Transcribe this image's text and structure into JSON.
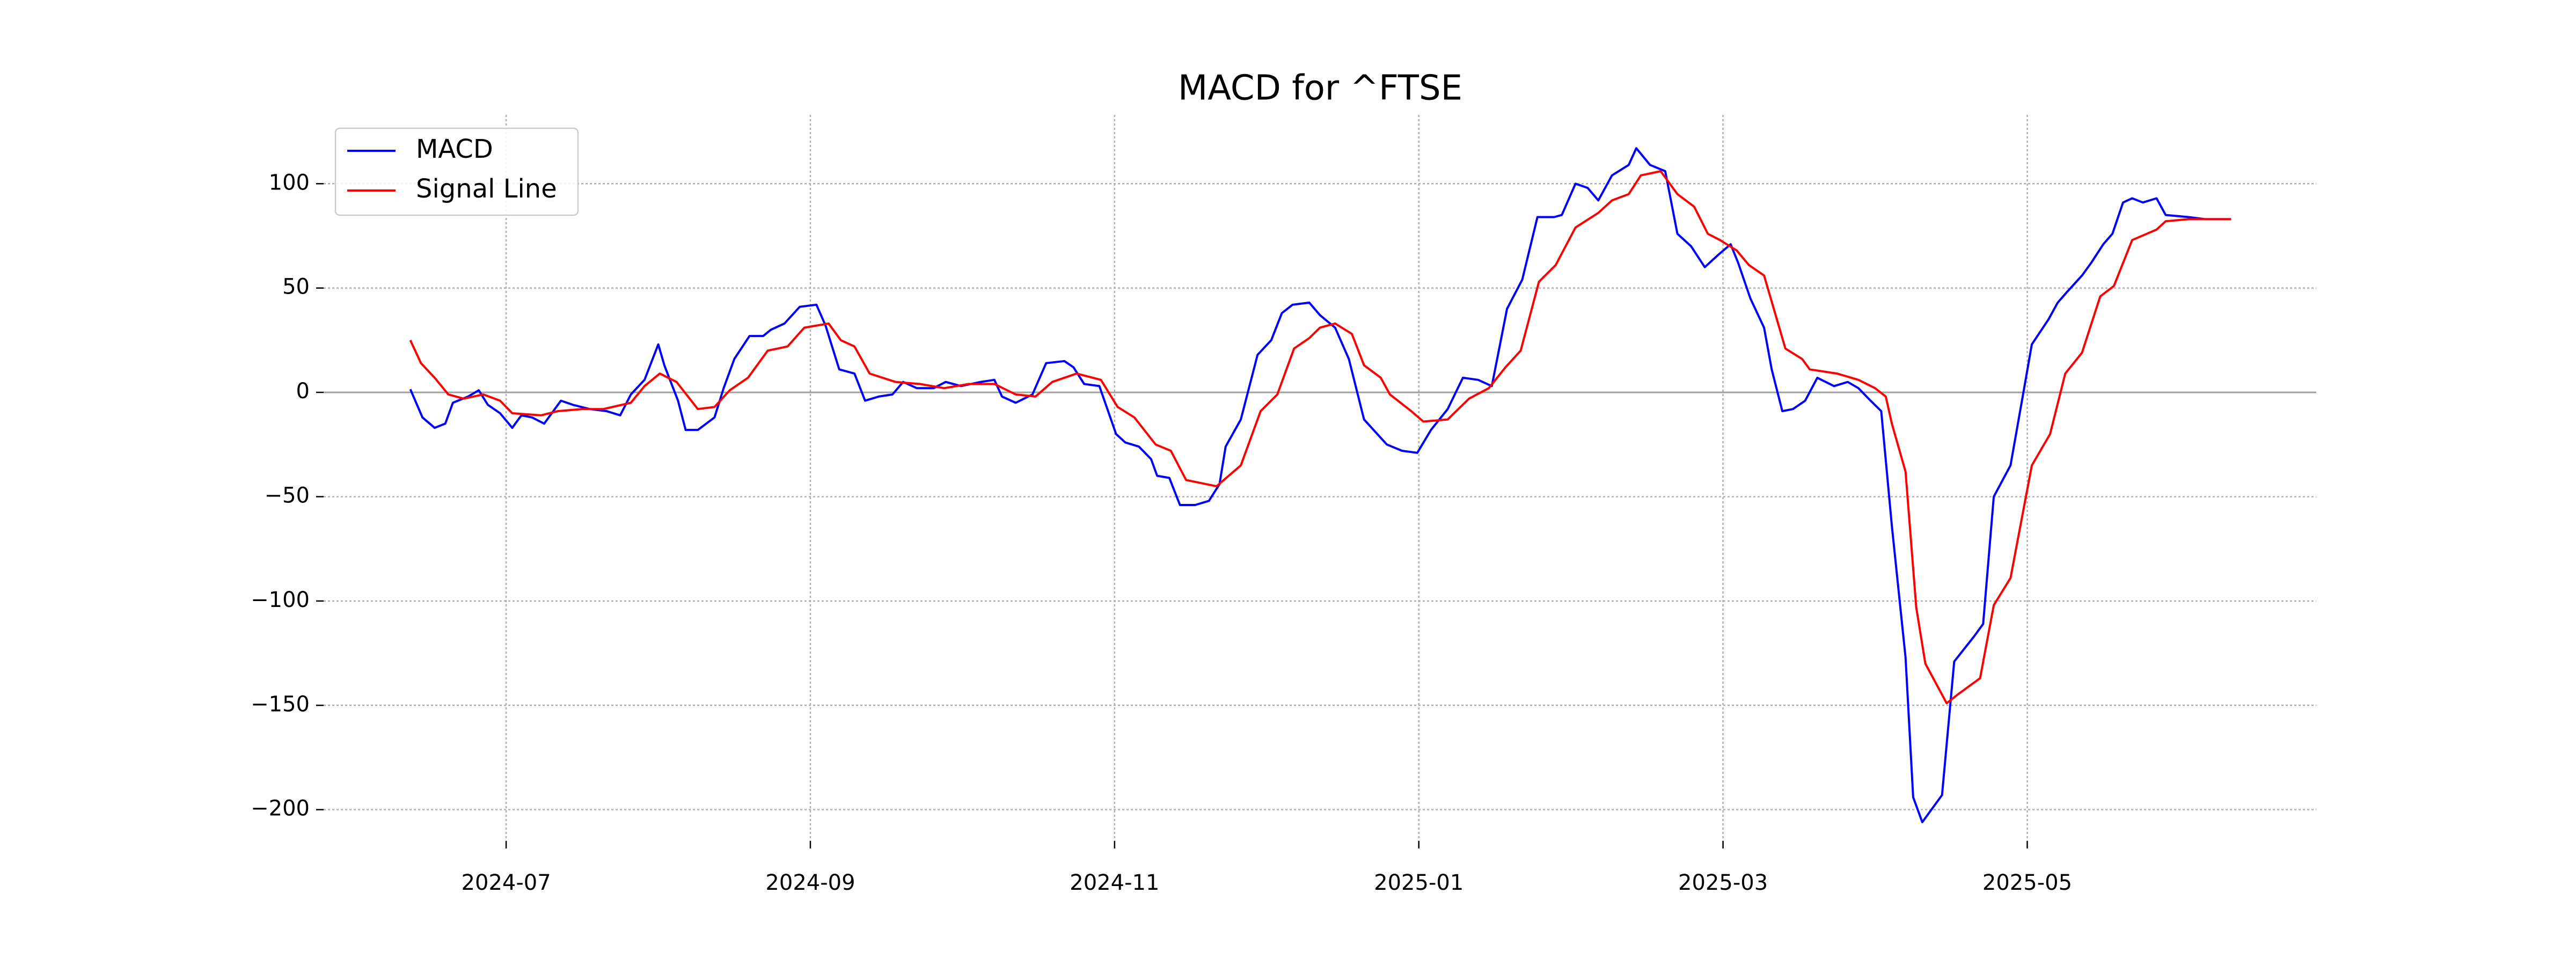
{
  "chart_data": {
    "type": "line",
    "title": "MACD for ^FTSE",
    "xlim": [
      5.8,
      18.9
    ],
    "xticks": [
      {
        "value": 7,
        "label": "2024-07"
      },
      {
        "value": 9,
        "label": "2024-09"
      },
      {
        "value": 11,
        "label": "2024-11"
      },
      {
        "value": 13,
        "label": "2025-01"
      },
      {
        "value": 15,
        "label": "2025-03"
      },
      {
        "value": 17,
        "label": "2025-05"
      }
    ],
    "ylim": [
      -215,
      133
    ],
    "yticks": [
      {
        "value": -200,
        "label": "−200"
      },
      {
        "value": -150,
        "label": "−150"
      },
      {
        "value": -100,
        "label": "−100"
      },
      {
        "value": -50,
        "label": "−50"
      },
      0,
      50,
      100
    ],
    "grid": true,
    "reference_line": 0,
    "legend": "upper left",
    "series": [
      {
        "name": "MACD",
        "color": "#0000ff",
        "x": [
          6.37,
          6.45,
          6.53,
          6.6,
          6.65,
          6.75,
          6.82,
          6.88,
          6.96,
          7.04,
          7.1,
          7.17,
          7.25,
          7.36,
          7.44,
          7.55,
          7.66,
          7.75,
          7.82,
          7.91,
          8.0,
          8.04,
          8.13,
          8.18,
          8.26,
          8.37,
          8.43,
          8.5,
          8.6,
          8.69,
          8.74,
          8.83,
          8.93,
          9.04,
          9.1,
          9.19,
          9.29,
          9.36,
          9.45,
          9.54,
          9.61,
          9.7,
          9.81,
          9.89,
          9.99,
          10.12,
          10.21,
          10.26,
          10.35,
          10.46,
          10.55,
          10.67,
          10.73,
          10.8,
          10.9,
          11.01,
          11.07,
          11.16,
          11.24,
          11.28,
          11.36,
          11.43,
          11.53,
          11.62,
          11.69,
          11.73,
          11.83,
          11.94,
          12.03,
          12.1,
          12.17,
          12.28,
          12.35,
          12.45,
          12.54,
          12.64,
          12.79,
          12.89,
          12.99,
          13.08,
          13.19,
          13.29,
          13.39,
          13.48,
          13.58,
          13.68,
          13.78,
          13.89,
          13.94,
          14.03,
          14.11,
          14.18,
          14.27,
          14.38,
          14.43,
          14.52,
          14.62,
          14.7,
          14.79,
          14.88,
          14.97,
          15.05,
          15.1,
          15.18,
          15.27,
          15.32,
          15.39,
          15.46,
          15.54,
          15.62,
          15.73,
          15.82,
          15.89,
          15.97,
          16.04,
          16.11,
          16.2,
          16.25,
          16.31,
          16.44,
          16.52,
          16.65,
          16.71,
          16.78,
          16.89,
          16.97,
          17.03,
          17.14,
          17.2,
          17.26,
          17.36,
          17.42,
          17.5,
          17.56,
          17.63,
          17.69,
          17.76,
          17.85,
          17.91,
          18.06,
          18.17,
          18.34
        ],
        "values": [
          1.5,
          -12,
          -17,
          -15,
          -5,
          -2,
          1,
          -6,
          -10,
          -17,
          -11,
          -12,
          -15,
          -4,
          -6,
          -8,
          -9,
          -11,
          -1,
          6,
          23,
          13,
          -4,
          -18,
          -18,
          -12,
          2,
          16,
          27,
          27,
          30,
          33,
          41,
          42,
          32,
          11,
          9,
          -4,
          -2,
          -1,
          5,
          2,
          2,
          5,
          3,
          5,
          6,
          -2,
          -5,
          -1,
          14,
          15,
          12,
          4,
          3,
          -20,
          -24,
          -26,
          -32,
          -40,
          -41,
          -54,
          -54,
          -52,
          -44,
          -26,
          -13,
          18,
          25,
          38,
          42,
          43,
          37,
          31,
          16,
          -13,
          -25,
          -28,
          -29,
          -18,
          -8,
          7,
          6,
          3,
          40,
          54,
          84,
          84,
          85,
          100,
          98,
          92,
          104,
          109,
          117,
          109,
          106,
          76,
          70,
          60,
          66,
          71,
          62,
          45,
          31,
          11,
          -9,
          -8,
          -4,
          7,
          3,
          5,
          2,
          -4,
          -9,
          -64,
          -127,
          -194,
          -206,
          -193,
          -129,
          -117,
          -111,
          -50,
          -35,
          -2,
          23,
          35,
          43,
          48,
          56,
          62,
          71,
          76,
          91,
          93,
          91,
          93,
          85,
          84,
          83,
          83
        ]
      },
      {
        "name": "Signal Line",
        "color": "#ff0000",
        "x": [
          6.37,
          6.44,
          6.53,
          6.62,
          6.72,
          6.85,
          6.96,
          7.04,
          7.23,
          7.34,
          7.5,
          7.64,
          7.82,
          7.91,
          8.01,
          8.12,
          8.26,
          8.37,
          8.47,
          8.59,
          8.72,
          8.85,
          8.96,
          9.12,
          9.2,
          9.29,
          9.39,
          9.56,
          9.72,
          9.88,
          10.04,
          10.21,
          10.35,
          10.48,
          10.59,
          10.75,
          10.91,
          11.02,
          11.13,
          11.27,
          11.37,
          11.47,
          11.67,
          11.83,
          11.96,
          12.07,
          12.18,
          12.28,
          12.35,
          12.45,
          12.56,
          12.64,
          12.75,
          12.81,
          12.95,
          13.03,
          13.19,
          13.33,
          13.46,
          13.57,
          13.67,
          13.79,
          13.9,
          14.03,
          14.18,
          14.27,
          14.38,
          14.46,
          14.59,
          14.7,
          14.81,
          14.9,
          14.98,
          15.09,
          15.17,
          15.27,
          15.41,
          15.52,
          15.57,
          15.75,
          15.89,
          16.0,
          16.07,
          16.11,
          16.2,
          16.27,
          16.33,
          16.47,
          16.54,
          16.69,
          16.78,
          16.89,
          17.03,
          17.15,
          17.25,
          17.36,
          17.48,
          17.57,
          17.69,
          17.85,
          17.91,
          18.06,
          18.34
        ],
        "values": [
          25,
          14,
          7,
          -1,
          -3,
          -1,
          -4,
          -10,
          -11,
          -9,
          -8,
          -8,
          -5,
          3,
          9,
          5,
          -8,
          -7,
          1,
          7,
          20,
          22,
          31,
          33,
          25,
          22,
          9,
          5,
          4,
          2,
          4,
          4,
          -1,
          -2,
          5,
          9,
          6,
          -7,
          -12,
          -25,
          -28,
          -42,
          -45,
          -35,
          -9,
          -1,
          21,
          26,
          31,
          33,
          28,
          13,
          7,
          -1,
          -9,
          -14,
          -13,
          -3,
          2,
          12,
          20,
          53,
          61,
          79,
          86,
          92,
          95,
          104,
          106,
          95,
          89,
          76,
          73,
          68,
          61,
          56,
          21,
          16,
          11,
          9,
          6,
          2,
          -2,
          -15,
          -38,
          -103,
          -130,
          -149,
          -145,
          -137,
          -102,
          -89,
          -35,
          -20,
          9,
          19,
          46,
          51,
          73,
          78,
          82,
          83,
          83
        ]
      }
    ]
  }
}
